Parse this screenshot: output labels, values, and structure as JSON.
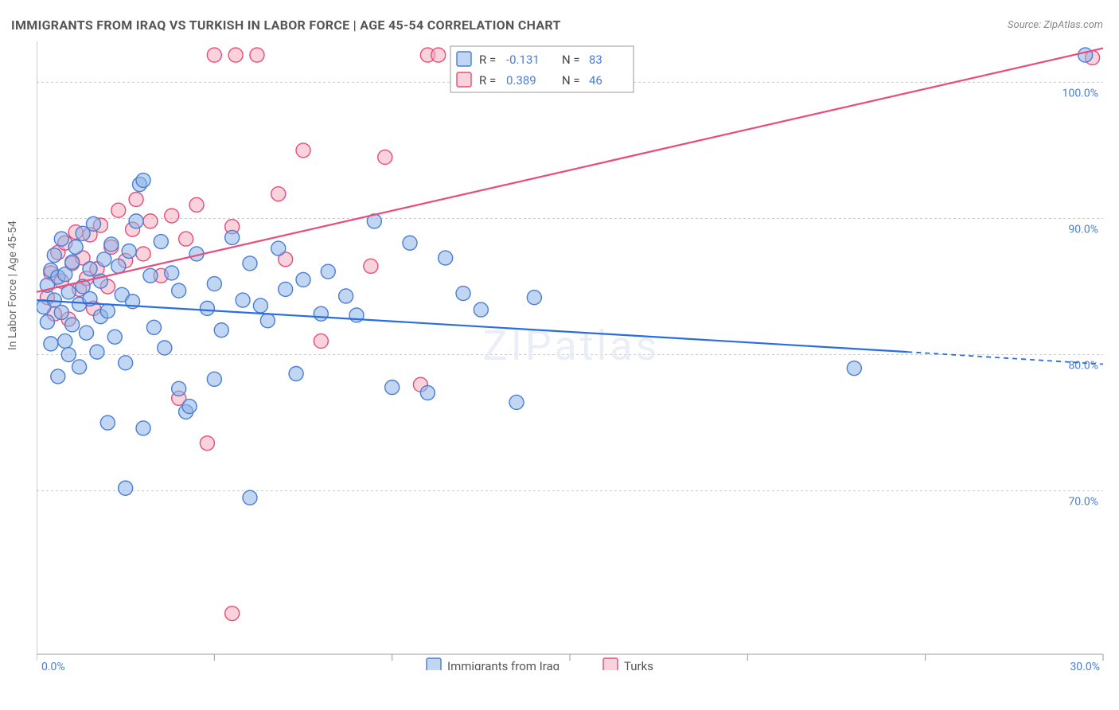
{
  "title": "IMMIGRANTS FROM IRAQ VS TURKISH IN LABOR FORCE | AGE 45-54 CORRELATION CHART",
  "source": "Source: ZipAtlas.com",
  "y_axis_label": "In Labor Force | Age 45-54",
  "watermark": "ZIPatlas",
  "chart": {
    "type": "scatter",
    "xlim": [
      0,
      30
    ],
    "ylim": [
      58,
      103
    ],
    "x_ticks": [
      0,
      5,
      10,
      15,
      20,
      25,
      30
    ],
    "x_tick_labels": {
      "0": "0.0%",
      "30": "30.0%"
    },
    "y_gridlines": [
      70,
      80,
      90,
      100
    ],
    "y_tick_labels": {
      "70": "70.0%",
      "80": "80.0%",
      "90": "90.0%",
      "100": "100.0%"
    },
    "marker_radius": 9,
    "colors": {
      "series1_fill": "#8cb4e8",
      "series1_stroke": "#4a7dd4",
      "series2_fill": "#f4aec0",
      "series2_stroke": "#e94b7a",
      "regression1": "#2a6de0",
      "regression2": "#e94b7a",
      "grid": "#cccccc",
      "axis": "#999999",
      "tick_text": "#4a7dd4",
      "background": "#ffffff"
    },
    "series": [
      {
        "name": "Immigrants from Iraq",
        "color_key": "blue",
        "R": "-0.131",
        "N": "83",
        "regression": {
          "x1": 0,
          "y1": 84.0,
          "x2": 24.5,
          "y2": 80.2,
          "x3": 30,
          "y3": 79.3
        },
        "points": [
          [
            0.2,
            83.5
          ],
          [
            0.3,
            85.1
          ],
          [
            0.3,
            82.4
          ],
          [
            0.4,
            86.2
          ],
          [
            0.4,
            80.8
          ],
          [
            0.5,
            84.0
          ],
          [
            0.5,
            87.3
          ],
          [
            0.6,
            78.4
          ],
          [
            0.6,
            85.7
          ],
          [
            0.7,
            83.1
          ],
          [
            0.7,
            88.5
          ],
          [
            0.8,
            81.0
          ],
          [
            0.8,
            85.9
          ],
          [
            0.9,
            84.6
          ],
          [
            0.9,
            80.0
          ],
          [
            1.0,
            86.8
          ],
          [
            1.0,
            82.2
          ],
          [
            1.1,
            87.9
          ],
          [
            1.2,
            83.7
          ],
          [
            1.2,
            79.1
          ],
          [
            1.3,
            85.0
          ],
          [
            1.3,
            88.9
          ],
          [
            1.4,
            81.6
          ],
          [
            1.5,
            86.3
          ],
          [
            1.5,
            84.1
          ],
          [
            1.6,
            89.6
          ],
          [
            1.7,
            80.2
          ],
          [
            1.8,
            85.4
          ],
          [
            1.8,
            82.8
          ],
          [
            1.9,
            87.0
          ],
          [
            2.0,
            75.0
          ],
          [
            2.0,
            83.2
          ],
          [
            2.1,
            88.1
          ],
          [
            2.2,
            81.3
          ],
          [
            2.3,
            86.5
          ],
          [
            2.4,
            84.4
          ],
          [
            2.5,
            79.4
          ],
          [
            2.6,
            87.6
          ],
          [
            2.7,
            83.9
          ],
          [
            2.8,
            89.8
          ],
          [
            2.9,
            92.5
          ],
          [
            3.0,
            92.8
          ],
          [
            3.0,
            74.6
          ],
          [
            3.2,
            85.8
          ],
          [
            3.3,
            82.0
          ],
          [
            3.5,
            88.3
          ],
          [
            3.6,
            80.5
          ],
          [
            3.8,
            86.0
          ],
          [
            4.0,
            77.5
          ],
          [
            4.0,
            84.7
          ],
          [
            4.2,
            75.8
          ],
          [
            4.3,
            76.2
          ],
          [
            4.5,
            87.4
          ],
          [
            4.8,
            83.4
          ],
          [
            5.0,
            78.2
          ],
          [
            5.0,
            85.2
          ],
          [
            5.2,
            81.8
          ],
          [
            5.5,
            88.6
          ],
          [
            5.8,
            84.0
          ],
          [
            6.0,
            69.5
          ],
          [
            6.0,
            86.7
          ],
          [
            6.3,
            83.6
          ],
          [
            6.5,
            82.5
          ],
          [
            6.8,
            87.8
          ],
          [
            7.0,
            84.8
          ],
          [
            7.3,
            78.6
          ],
          [
            7.5,
            85.5
          ],
          [
            8.0,
            83.0
          ],
          [
            8.2,
            86.1
          ],
          [
            8.7,
            84.3
          ],
          [
            9.0,
            82.9
          ],
          [
            9.5,
            89.8
          ],
          [
            10.0,
            77.6
          ],
          [
            10.5,
            88.2
          ],
          [
            11.0,
            77.2
          ],
          [
            11.5,
            87.1
          ],
          [
            12.0,
            84.5
          ],
          [
            12.5,
            83.3
          ],
          [
            13.5,
            76.5
          ],
          [
            14.0,
            84.2
          ],
          [
            2.5,
            70.2
          ],
          [
            23.0,
            79.0
          ],
          [
            29.5,
            102.0
          ]
        ]
      },
      {
        "name": "Turks",
        "color_key": "pink",
        "R": "0.389",
        "N": "46",
        "regression": {
          "x1": 0,
          "y1": 84.6,
          "x2": 30,
          "y2": 102.5
        },
        "points": [
          [
            0.3,
            84.2
          ],
          [
            0.4,
            86.0
          ],
          [
            0.5,
            83.0
          ],
          [
            0.6,
            87.5
          ],
          [
            0.7,
            85.4
          ],
          [
            0.8,
            88.2
          ],
          [
            0.9,
            82.6
          ],
          [
            1.0,
            86.7
          ],
          [
            1.1,
            89.0
          ],
          [
            1.2,
            84.8
          ],
          [
            1.3,
            87.1
          ],
          [
            1.4,
            85.6
          ],
          [
            1.5,
            88.8
          ],
          [
            1.6,
            83.4
          ],
          [
            1.7,
            86.3
          ],
          [
            1.8,
            89.5
          ],
          [
            2.0,
            85.0
          ],
          [
            2.1,
            87.9
          ],
          [
            2.3,
            90.6
          ],
          [
            2.5,
            86.9
          ],
          [
            2.7,
            89.2
          ],
          [
            2.8,
            91.4
          ],
          [
            3.0,
            87.4
          ],
          [
            3.2,
            89.8
          ],
          [
            3.5,
            85.8
          ],
          [
            3.8,
            90.2
          ],
          [
            4.0,
            76.8
          ],
          [
            4.2,
            88.5
          ],
          [
            4.5,
            91.0
          ],
          [
            4.8,
            73.5
          ],
          [
            5.0,
            102.0
          ],
          [
            5.5,
            89.4
          ],
          [
            5.5,
            61.0
          ],
          [
            5.6,
            102.0
          ],
          [
            6.2,
            102.0
          ],
          [
            6.8,
            91.8
          ],
          [
            7.0,
            87.0
          ],
          [
            7.5,
            95.0
          ],
          [
            8.0,
            81.0
          ],
          [
            9.4,
            86.5
          ],
          [
            9.8,
            94.5
          ],
          [
            10.8,
            77.8
          ],
          [
            11.0,
            102.0
          ],
          [
            11.3,
            102.0
          ],
          [
            12.4,
            102.0
          ],
          [
            29.7,
            101.8
          ]
        ]
      }
    ]
  },
  "stat_legend": {
    "rows": [
      {
        "swatch": "blue",
        "r_label": "R =",
        "r_val": "-0.131",
        "n_label": "N =",
        "n_val": "83"
      },
      {
        "swatch": "pink",
        "r_label": "R =",
        "r_val": "0.389",
        "n_label": "N =",
        "n_val": "46"
      }
    ]
  },
  "bottom_legend": {
    "items": [
      {
        "swatch": "blue",
        "label": "Immigrants from Iraq"
      },
      {
        "swatch": "pink",
        "label": "Turks"
      }
    ]
  }
}
